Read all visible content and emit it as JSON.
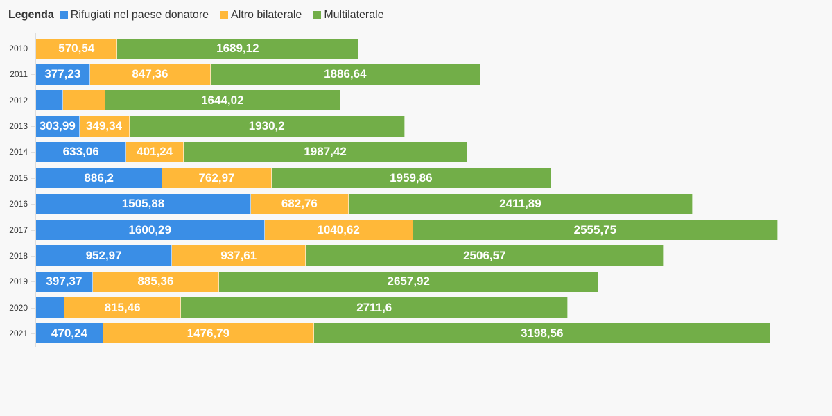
{
  "chart_data": {
    "type": "bar",
    "orientation": "horizontal",
    "stacked": true,
    "legend_title": "Legenda",
    "legend_position": "top-left",
    "categories": [
      "2010",
      "2011",
      "2012",
      "2013",
      "2014",
      "2015",
      "2016",
      "2017",
      "2018",
      "2019",
      "2020",
      "2021"
    ],
    "series": [
      {
        "name": "Rifugiati nel paese donatore",
        "color": "#3a8ee6",
        "values": [
          0,
          377.23,
          190,
          303.99,
          633.06,
          886.2,
          1505.88,
          1600.29,
          952.97,
          397.37,
          200,
          470.24
        ],
        "labels": [
          null,
          "377,23",
          null,
          "303,99",
          "633,06",
          "886,2",
          "1505,88",
          "1600,29",
          "952,97",
          "397,37",
          null,
          "470,24"
        ]
      },
      {
        "name": "Altro bilaterale",
        "color": "#ffb839",
        "values": [
          570.54,
          847.36,
          296,
          349.34,
          401.24,
          762.97,
          682.76,
          1040.62,
          937.61,
          885.36,
          815.46,
          1476.79
        ],
        "labels": [
          "570,54",
          "847,36",
          null,
          "349,34",
          "401,24",
          "762,97",
          "682,76",
          "1040,62",
          "937,61",
          "885,36",
          "815,46",
          "1476,79"
        ]
      },
      {
        "name": "Multilaterale",
        "color": "#72ae48",
        "values": [
          1689.12,
          1886.64,
          1644.02,
          1930.2,
          1987.42,
          1959.86,
          2411.89,
          2555.75,
          2506.57,
          2657.92,
          2711.6,
          3198.56
        ],
        "labels": [
          "1689,12",
          "1886,64",
          "1644,02",
          "1930,2",
          "1987,42",
          "1959,86",
          "2411,89",
          "2555,75",
          "2506,57",
          "2657,92",
          "2711,6",
          "3198,56"
        ]
      }
    ],
    "xlim": [
      0,
      5196.66
    ],
    "grid": false
  }
}
